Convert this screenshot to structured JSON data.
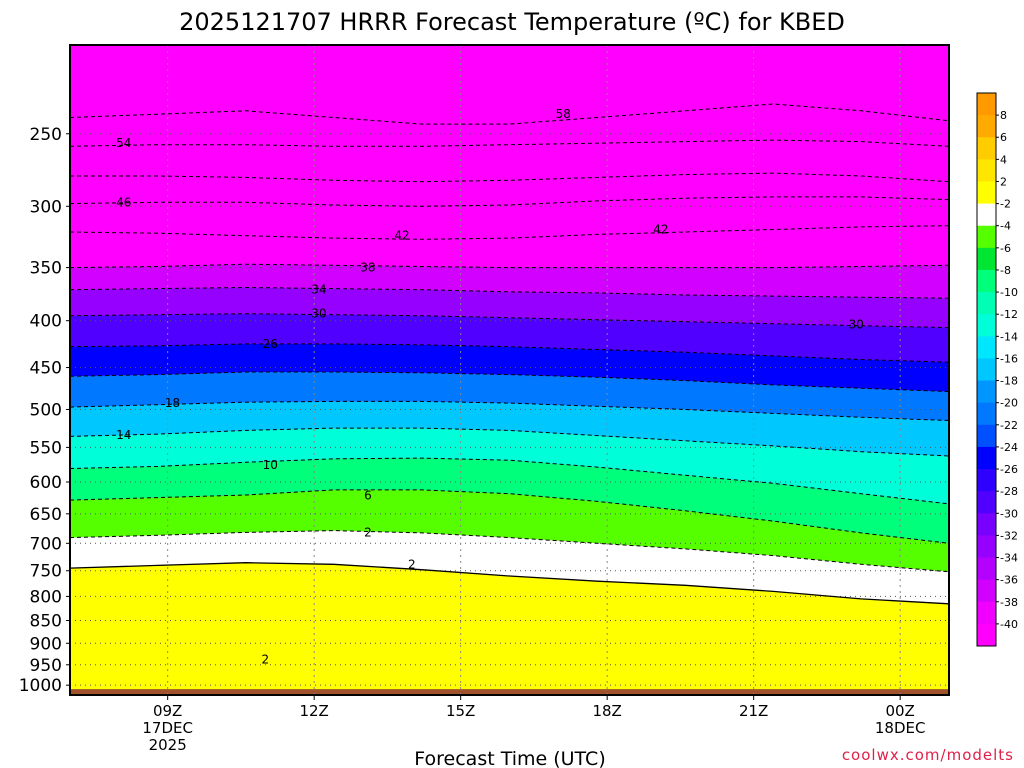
{
  "chart_data": {
    "type": "heatmap",
    "title": "2025121707 HRRR Forecast Temperature (ºC) for KBED",
    "xlabel": "Forecast Time (UTC)",
    "ylabel": "",
    "x_range_hours": [
      7,
      25
    ],
    "y_range_hpa": [
      1025,
      200
    ],
    "y_scale": "log-pressure",
    "y_ticks": [
      250,
      300,
      350,
      400,
      450,
      500,
      550,
      600,
      650,
      700,
      750,
      800,
      850,
      900,
      950,
      1000
    ],
    "x_ticks": [
      {
        "hour": 9,
        "lines": [
          "09Z",
          "17DEC",
          "2025"
        ]
      },
      {
        "hour": 12,
        "lines": [
          "12Z"
        ]
      },
      {
        "hour": 15,
        "lines": [
          "15Z"
        ]
      },
      {
        "hour": 18,
        "lines": [
          "18Z"
        ]
      },
      {
        "hour": 21,
        "lines": [
          "21Z"
        ]
      },
      {
        "hour": 24,
        "lines": [
          "00Z",
          "18DEC"
        ]
      }
    ],
    "colorbar": {
      "labels": [
        "8",
        "6",
        "4",
        "2",
        "-2",
        "-4",
        "-6",
        "-8",
        "-10",
        "-12",
        "-14",
        "-16",
        "-18",
        "-20",
        "-22",
        "-24",
        "-26",
        "-28",
        "-30",
        "-32",
        "-34",
        "-36",
        "-38",
        "-40"
      ],
      "colors": [
        "#ff9900",
        "#ffaa00",
        "#ffcc00",
        "#ffe600",
        "#ffff00",
        "#ffffff",
        "#55ff00",
        "#00e632",
        "#00ff7a",
        "#00ffb4",
        "#00ffd8",
        "#00e6ff",
        "#00c8ff",
        "#0096ff",
        "#0078ff",
        "#0050ff",
        "#0000ff",
        "#2d00ff",
        "#5000ff",
        "#7800ff",
        "#9600ff",
        "#b400ff",
        "#d200ff",
        "#f000ff",
        "#ff00ff"
      ]
    },
    "isotherms": [
      {
        "temp": 2,
        "pressure": [
          745,
          740,
          735,
          738,
          748,
          760,
          770,
          778,
          790,
          805,
          815
        ]
      },
      {
        "temp": -2,
        "pressure": [
          690,
          686,
          681,
          678,
          682,
          690,
          700,
          710,
          722,
          738,
          752
        ]
      },
      {
        "temp": -6,
        "pressure": [
          628,
          624,
          620,
          612,
          612,
          618,
          630,
          645,
          662,
          682,
          700
        ]
      },
      {
        "temp": -10,
        "pressure": [
          580,
          577,
          571,
          566,
          565,
          568,
          578,
          590,
          602,
          618,
          634
        ]
      },
      {
        "temp": -14,
        "pressure": [
          535,
          532,
          527,
          524,
          524,
          527,
          534,
          541,
          548,
          556,
          562
        ]
      },
      {
        "temp": -18,
        "pressure": [
          497,
          494,
          491,
          490,
          490,
          492,
          496,
          500,
          505,
          510,
          514
        ]
      },
      {
        "temp": -22,
        "pressure": [
          460,
          458,
          455,
          455,
          456,
          458,
          461,
          465,
          470,
          474,
          478
        ]
      },
      {
        "temp": -26,
        "pressure": [
          427,
          426,
          424,
          424,
          425,
          427,
          430,
          433,
          437,
          441,
          444
        ]
      },
      {
        "temp": -30,
        "pressure": [
          395,
          394,
          393,
          394,
          395,
          397,
          399,
          401,
          403,
          405,
          407
        ]
      },
      {
        "temp": -34,
        "pressure": [
          370,
          369,
          368,
          369,
          370,
          372,
          373,
          375,
          376,
          377,
          378
        ]
      },
      {
        "temp": -38,
        "pressure": [
          350,
          349,
          347,
          348,
          349,
          350,
          350,
          350,
          350,
          349,
          348
        ]
      },
      {
        "temp": -42,
        "pressure": [
          320,
          321,
          323,
          325,
          326,
          325,
          322,
          320,
          318,
          316,
          315
        ]
      },
      {
        "temp": -46,
        "pressure": [
          298,
          297,
          297,
          299,
          300,
          299,
          296,
          294,
          293,
          293,
          295
        ]
      },
      {
        "temp": -50,
        "pressure": [
          278,
          278,
          279,
          281,
          282,
          281,
          279,
          277,
          276,
          278,
          282
        ]
      },
      {
        "temp": -54,
        "pressure": [
          258,
          257,
          257,
          258,
          258,
          257,
          256,
          255,
          254,
          255,
          258
        ]
      },
      {
        "temp": -58,
        "pressure": [
          240,
          238,
          236,
          240,
          244,
          244,
          240,
          236,
          232,
          236,
          242
        ]
      }
    ],
    "contour_labels": [
      {
        "text": "58",
        "hour": 17.1,
        "pressure": 238
      },
      {
        "text": "54",
        "hour": 8.1,
        "pressure": 256
      },
      {
        "text": "46",
        "hour": 8.1,
        "pressure": 297
      },
      {
        "text": "42",
        "hour": 13.8,
        "pressure": 323
      },
      {
        "text": "42",
        "hour": 19.1,
        "pressure": 318
      },
      {
        "text": "38",
        "hour": 13.1,
        "pressure": 350
      },
      {
        "text": "34",
        "hour": 12.1,
        "pressure": 370
      },
      {
        "text": "30",
        "hour": 12.1,
        "pressure": 393
      },
      {
        "text": "30",
        "hour": 23.1,
        "pressure": 404
      },
      {
        "text": "26",
        "hour": 11.1,
        "pressure": 424
      },
      {
        "text": "18",
        "hour": 9.1,
        "pressure": 492
      },
      {
        "text": "14",
        "hour": 8.1,
        "pressure": 533
      },
      {
        "text": "10",
        "hour": 11.1,
        "pressure": 575
      },
      {
        "text": "6",
        "hour": 13.1,
        "pressure": 621
      },
      {
        "text": "2",
        "hour": 13.1,
        "pressure": 681
      },
      {
        "text": "2",
        "hour": 14.0,
        "pressure": 738
      },
      {
        "text": "2",
        "hour": 11.0,
        "pressure": 938
      }
    ]
  },
  "credit": "coolwx.com/modelts"
}
